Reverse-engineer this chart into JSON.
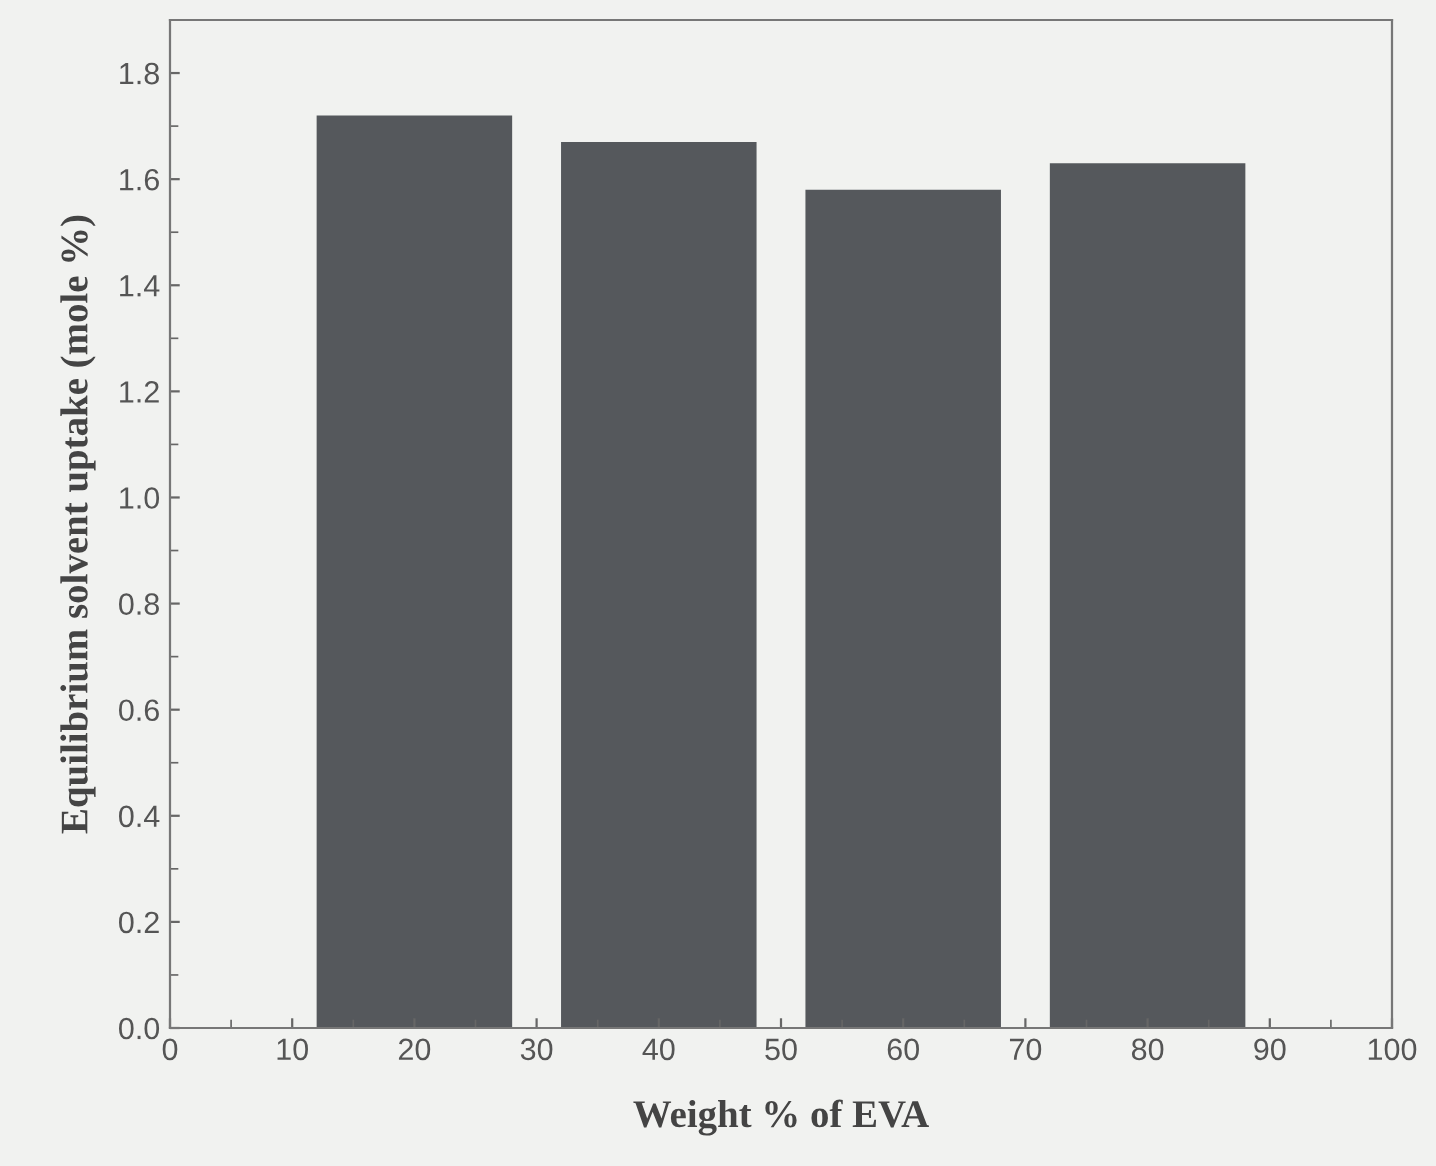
{
  "chart_data": {
    "type": "bar",
    "xlabel": "Weight % of EVA",
    "ylabel": "Equilibrium solvent uptake (mole %)",
    "x": [
      20,
      40,
      60,
      80
    ],
    "values": [
      1.72,
      1.67,
      1.58,
      1.63
    ],
    "color": "#55585c",
    "xlim": [
      0,
      100
    ],
    "xticks": [
      0,
      10,
      20,
      30,
      40,
      50,
      60,
      70,
      80,
      90,
      100
    ],
    "ylim": [
      0,
      1.9
    ],
    "yticks": [
      {
        "value": 0,
        "label": "0.0"
      },
      0.2,
      0.4,
      0.6,
      0.8,
      {
        "value": 1.0,
        "label": "1.0"
      },
      1.2,
      1.4,
      1.6,
      1.8
    ],
    "grid": false,
    "legend": false
  }
}
